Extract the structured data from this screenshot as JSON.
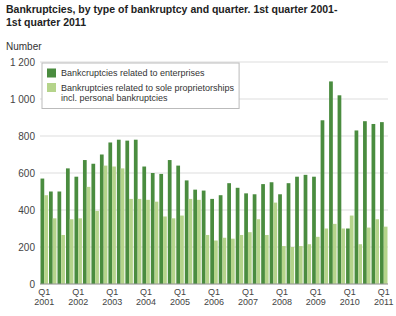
{
  "chart_data": {
    "type": "bar",
    "title": "Bankruptcies, by type of bankruptcy and quarter. 1st quarter 2001-\n1st quarter 2011",
    "ylabel": "Number",
    "categories": [
      "Q1\n2001",
      null,
      null,
      null,
      "Q1\n2002",
      null,
      null,
      null,
      "Q1\n2003",
      null,
      null,
      null,
      "Q1\n2004",
      null,
      null,
      null,
      "Q1\n2005",
      null,
      null,
      null,
      "Q1\n2006",
      null,
      null,
      null,
      "Q1\n2007",
      null,
      null,
      null,
      "Q1\n2008",
      null,
      null,
      null,
      "Q1\n2009",
      null,
      null,
      null,
      "Q1\n2010",
      null,
      null,
      null,
      "Q1\n2011"
    ],
    "series": [
      {
        "name": "Bankcruptcies related to enterprises",
        "color": "#4a8c3f",
        "values": [
          570,
          500,
          500,
          625,
          580,
          670,
          650,
          700,
          765,
          780,
          775,
          780,
          635,
          600,
          595,
          670,
          640,
          560,
          510,
          505,
          460,
          480,
          545,
          520,
          490,
          485,
          540,
          550,
          485,
          545,
          580,
          590,
          580,
          885,
          1095,
          1020,
          300,
          830,
          880,
          865,
          875
        ]
      },
      {
        "name": "Bankruptcies related to sole proprietorships\nincl. personal bankruptcies",
        "color": "#b5d48b",
        "values": [
          480,
          355,
          265,
          350,
          355,
          525,
          395,
          640,
          635,
          625,
          460,
          460,
          455,
          445,
          365,
          355,
          370,
          460,
          455,
          265,
          235,
          250,
          245,
          265,
          280,
          350,
          265,
          440,
          205,
          200,
          205,
          215,
          255,
          300,
          325,
          300,
          370,
          215,
          305,
          350,
          310
        ]
      }
    ],
    "ylim": [
      0,
      1200
    ],
    "yticks": [
      0,
      200,
      400,
      600,
      800,
      {
        "value": 1000,
        "label": "1 000"
      },
      {
        "value": 1200,
        "label": "1 200"
      }
    ],
    "grid": true,
    "legend": "upper left"
  }
}
